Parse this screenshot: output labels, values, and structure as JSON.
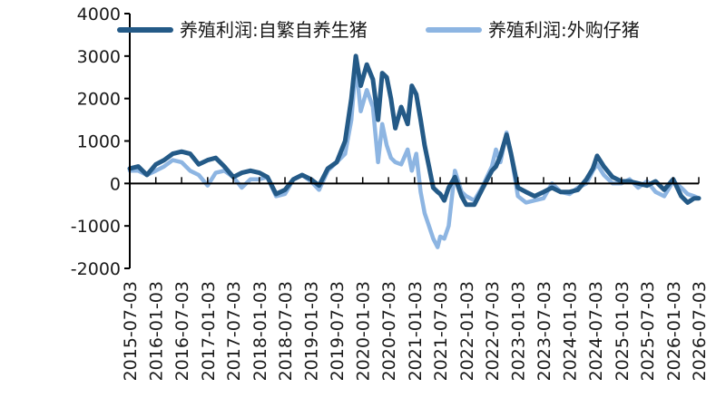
{
  "chart_data": {
    "type": "line",
    "title": "",
    "xlabel": "",
    "ylabel": "",
    "ylim": [
      -2000,
      4000
    ],
    "yticks": [
      4000,
      3000,
      2000,
      1000,
      0,
      -1000,
      -2000
    ],
    "x_tick_labels": [
      "2015-07-03",
      "2016-01-03",
      "2016-07-03",
      "2017-01-03",
      "2017-07-03",
      "2018-01-03",
      "2018-07-03",
      "2019-01-03",
      "2019-07-03",
      "2020-01-03",
      "2020-07-03",
      "2021-01-03",
      "2021-07-03",
      "2022-01-03",
      "2022-07-03",
      "2023-01-03",
      "2023-07-03",
      "2024-01-03",
      "2024-07-03",
      "2025-01-03",
      "2025-07-03",
      "2026-01-03",
      "2026-07-03"
    ],
    "x_range": [
      "2015-07-03",
      "2026-07-03"
    ],
    "grid": false,
    "legend_position": "top",
    "series": [
      {
        "name": "养殖利润:自繁自养生猪",
        "color": "#245a87",
        "points": [
          [
            "2015-07-03",
            350
          ],
          [
            "2015-09-01",
            400
          ],
          [
            "2015-11-01",
            200
          ],
          [
            "2016-01-03",
            450
          ],
          [
            "2016-03-01",
            550
          ],
          [
            "2016-05-01",
            700
          ],
          [
            "2016-07-03",
            750
          ],
          [
            "2016-09-01",
            700
          ],
          [
            "2016-11-01",
            450
          ],
          [
            "2017-01-03",
            550
          ],
          [
            "2017-03-01",
            600
          ],
          [
            "2017-05-01",
            400
          ],
          [
            "2017-07-03",
            150
          ],
          [
            "2017-09-01",
            250
          ],
          [
            "2017-11-01",
            300
          ],
          [
            "2018-01-03",
            250
          ],
          [
            "2018-03-01",
            150
          ],
          [
            "2018-05-01",
            -250
          ],
          [
            "2018-07-03",
            -150
          ],
          [
            "2018-09-01",
            100
          ],
          [
            "2018-11-01",
            200
          ],
          [
            "2019-01-03",
            100
          ],
          [
            "2019-03-01",
            -50
          ],
          [
            "2019-05-01",
            350
          ],
          [
            "2019-07-03",
            500
          ],
          [
            "2019-09-01",
            1000
          ],
          [
            "2019-10-15",
            2000
          ],
          [
            "2019-11-15",
            3000
          ],
          [
            "2019-12-20",
            2300
          ],
          [
            "2020-02-01",
            2800
          ],
          [
            "2020-03-15",
            2450
          ],
          [
            "2020-04-20",
            1500
          ],
          [
            "2020-05-20",
            2600
          ],
          [
            "2020-06-20",
            2500
          ],
          [
            "2020-07-20",
            2000
          ],
          [
            "2020-08-20",
            1300
          ],
          [
            "2020-10-01",
            1800
          ],
          [
            "2020-11-15",
            1400
          ],
          [
            "2020-12-15",
            2300
          ],
          [
            "2021-01-15",
            2100
          ],
          [
            "2021-02-15",
            1500
          ],
          [
            "2021-03-15",
            900
          ],
          [
            "2021-04-15",
            400
          ],
          [
            "2021-05-15",
            -100
          ],
          [
            "2021-06-15",
            -200
          ],
          [
            "2021-07-03",
            -250
          ],
          [
            "2021-08-01",
            -400
          ],
          [
            "2021-09-01",
            -100
          ],
          [
            "2021-10-15",
            150
          ],
          [
            "2021-12-01",
            -300
          ],
          [
            "2022-01-03",
            -500
          ],
          [
            "2022-03-01",
            -500
          ],
          [
            "2022-05-01",
            -100
          ],
          [
            "2022-07-03",
            300
          ],
          [
            "2022-08-01",
            400
          ],
          [
            "2022-09-01",
            650
          ],
          [
            "2022-10-15",
            1150
          ],
          [
            "2022-11-15",
            700
          ],
          [
            "2023-01-03",
            -100
          ],
          [
            "2023-03-01",
            -200
          ],
          [
            "2023-05-01",
            -300
          ],
          [
            "2023-07-03",
            -200
          ],
          [
            "2023-09-01",
            -100
          ],
          [
            "2023-11-01",
            -200
          ],
          [
            "2024-01-03",
            -200
          ],
          [
            "2024-03-01",
            -150
          ],
          [
            "2024-05-01",
            100
          ],
          [
            "2024-06-15",
            350
          ],
          [
            "2024-07-15",
            650
          ],
          [
            "2024-09-01",
            400
          ],
          [
            "2024-11-01",
            150
          ],
          [
            "2025-01-03",
            50
          ],
          [
            "2025-03-01",
            50
          ],
          [
            "2025-05-01",
            0
          ],
          [
            "2025-07-03",
            -50
          ],
          [
            "2025-09-01",
            50
          ],
          [
            "2025-11-01",
            -150
          ],
          [
            "2026-01-03",
            100
          ],
          [
            "2026-03-01",
            -300
          ],
          [
            "2026-04-15",
            -450
          ],
          [
            "2026-06-01",
            -350
          ],
          [
            "2026-07-03",
            -350
          ]
        ]
      },
      {
        "name": "养殖利润:外购仔猪",
        "color": "#8db5e2",
        "points": [
          [
            "2015-07-03",
            300
          ],
          [
            "2015-09-01",
            300
          ],
          [
            "2015-11-01",
            200
          ],
          [
            "2016-01-03",
            300
          ],
          [
            "2016-03-01",
            400
          ],
          [
            "2016-05-01",
            550
          ],
          [
            "2016-07-03",
            500
          ],
          [
            "2016-09-01",
            300
          ],
          [
            "2016-11-01",
            200
          ],
          [
            "2017-01-03",
            -50
          ],
          [
            "2017-03-01",
            250
          ],
          [
            "2017-05-01",
            300
          ],
          [
            "2017-07-03",
            150
          ],
          [
            "2017-09-01",
            -100
          ],
          [
            "2017-11-01",
            100
          ],
          [
            "2018-01-03",
            100
          ],
          [
            "2018-03-01",
            150
          ],
          [
            "2018-05-01",
            -300
          ],
          [
            "2018-07-03",
            -250
          ],
          [
            "2018-09-01",
            100
          ],
          [
            "2018-11-01",
            200
          ],
          [
            "2019-01-03",
            50
          ],
          [
            "2019-03-01",
            -150
          ],
          [
            "2019-05-01",
            300
          ],
          [
            "2019-07-03",
            500
          ],
          [
            "2019-09-01",
            700
          ],
          [
            "2019-10-15",
            1500
          ],
          [
            "2019-11-15",
            2800
          ],
          [
            "2019-12-20",
            1700
          ],
          [
            "2020-02-01",
            2200
          ],
          [
            "2020-03-15",
            1800
          ],
          [
            "2020-04-20",
            500
          ],
          [
            "2020-05-20",
            1400
          ],
          [
            "2020-06-20",
            900
          ],
          [
            "2020-07-20",
            600
          ],
          [
            "2020-08-20",
            500
          ],
          [
            "2020-10-01",
            450
          ],
          [
            "2020-11-15",
            800
          ],
          [
            "2020-12-15",
            300
          ],
          [
            "2021-01-15",
            700
          ],
          [
            "2021-02-15",
            -200
          ],
          [
            "2021-03-15",
            -700
          ],
          [
            "2021-04-15",
            -1000
          ],
          [
            "2021-05-15",
            -1300
          ],
          [
            "2021-06-15",
            -1500
          ],
          [
            "2021-07-03",
            -1250
          ],
          [
            "2021-08-01",
            -1300
          ],
          [
            "2021-09-01",
            -1000
          ],
          [
            "2021-10-15",
            300
          ],
          [
            "2021-12-01",
            -200
          ],
          [
            "2022-01-03",
            -300
          ],
          [
            "2022-03-01",
            -400
          ],
          [
            "2022-05-01",
            -50
          ],
          [
            "2022-07-03",
            400
          ],
          [
            "2022-08-01",
            800
          ],
          [
            "2022-09-01",
            500
          ],
          [
            "2022-10-15",
            1200
          ],
          [
            "2022-11-15",
            700
          ],
          [
            "2023-01-03",
            -300
          ],
          [
            "2023-03-01",
            -450
          ],
          [
            "2023-05-01",
            -400
          ],
          [
            "2023-07-03",
            -350
          ],
          [
            "2023-09-01",
            0
          ],
          [
            "2023-11-01",
            -200
          ],
          [
            "2024-01-03",
            -250
          ],
          [
            "2024-03-01",
            -100
          ],
          [
            "2024-05-01",
            0
          ],
          [
            "2024-06-15",
            300
          ],
          [
            "2024-07-15",
            450
          ],
          [
            "2024-09-01",
            200
          ],
          [
            "2024-11-01",
            0
          ],
          [
            "2025-01-03",
            0
          ],
          [
            "2025-03-01",
            100
          ],
          [
            "2025-05-01",
            -100
          ],
          [
            "2025-07-03",
            50
          ],
          [
            "2025-09-01",
            -200
          ],
          [
            "2025-11-01",
            -300
          ],
          [
            "2026-01-03",
            50
          ],
          [
            "2026-03-01",
            -100
          ],
          [
            "2026-04-15",
            -250
          ],
          [
            "2026-06-01",
            -300
          ],
          [
            "2026-07-03",
            -350
          ]
        ]
      }
    ]
  }
}
